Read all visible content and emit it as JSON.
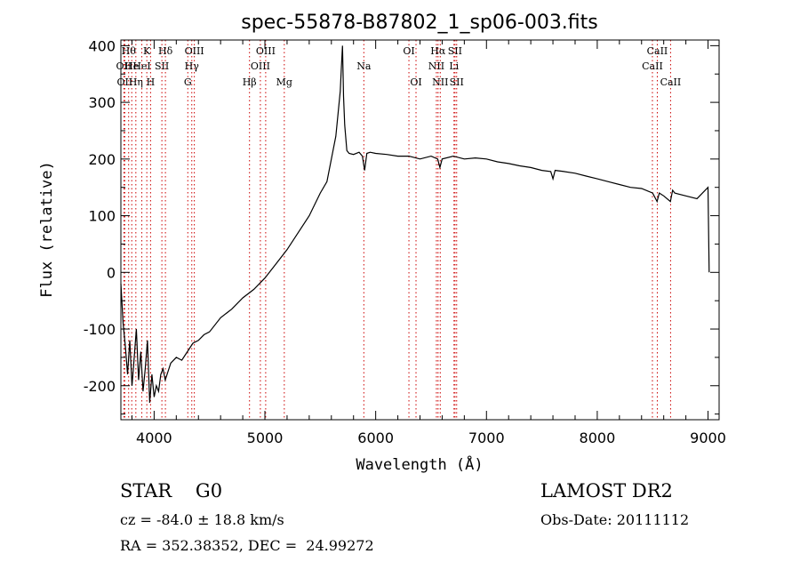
{
  "chart_data": {
    "type": "line",
    "title": "spec-55878-B87802_1_sp06-003.fits",
    "xlabel": "Wavelength (Å)",
    "ylabel": "Flux (relative)",
    "xlim": [
      3700,
      9100
    ],
    "ylim": [
      -260,
      410
    ],
    "xticks": [
      4000,
      5000,
      6000,
      7000,
      8000,
      9000
    ],
    "yticks": [
      -200,
      -100,
      0,
      100,
      200,
      300,
      400
    ],
    "grid": false,
    "legend": "none",
    "line_color": "#000000",
    "marker_color": "#cc0000",
    "series": [
      {
        "x": [
          3700,
          3720,
          3740,
          3760,
          3780,
          3800,
          3820,
          3840,
          3860,
          3880,
          3900,
          3920,
          3940,
          3960,
          3980,
          4000,
          4020,
          4040,
          4060,
          4080,
          4100,
          4150,
          4200,
          4250,
          4300,
          4350,
          4400,
          4450,
          4500,
          4600,
          4700,
          4800,
          4900,
          5000,
          5100,
          5200,
          5300,
          5400,
          5500,
          5560,
          5600,
          5640,
          5660,
          5680,
          5690,
          5700,
          5710,
          5720,
          5740,
          5760,
          5800,
          5850,
          5880,
          5900,
          5920,
          5950,
          6000,
          6100,
          6200,
          6300,
          6400,
          6500,
          6560,
          6580,
          6600,
          6700,
          6800,
          6900,
          7000,
          7100,
          7200,
          7300,
          7400,
          7500,
          7580,
          7600,
          7620,
          7700,
          7800,
          7900,
          8000,
          8100,
          8200,
          8300,
          8400,
          8500,
          8540,
          8560,
          8600,
          8660,
          8680,
          8700,
          8800,
          8900,
          8950,
          9000,
          9010
        ],
        "values": [
          -20,
          -90,
          -130,
          -180,
          -120,
          -200,
          -150,
          -100,
          -190,
          -140,
          -210,
          -170,
          -120,
          -230,
          -180,
          -220,
          -200,
          -210,
          -180,
          -170,
          -190,
          -160,
          -150,
          -155,
          -140,
          -125,
          -120,
          -110,
          -105,
          -80,
          -65,
          -45,
          -30,
          -10,
          15,
          40,
          70,
          100,
          140,
          160,
          200,
          240,
          280,
          320,
          360,
          400,
          310,
          260,
          215,
          210,
          208,
          212,
          205,
          180,
          210,
          212,
          210,
          208,
          205,
          205,
          200,
          205,
          200,
          185,
          200,
          205,
          200,
          202,
          200,
          195,
          192,
          188,
          185,
          180,
          178,
          165,
          180,
          178,
          175,
          170,
          165,
          160,
          155,
          150,
          148,
          140,
          125,
          140,
          135,
          125,
          145,
          140,
          135,
          130,
          140,
          150,
          0
        ]
      }
    ],
    "annotations": {
      "elements": [
        {
          "wl": 3727,
          "row": 1,
          "label": "OII"
        },
        {
          "wl": 3735,
          "row": 2,
          "label": "OII"
        },
        {
          "wl": 3770,
          "row": 0,
          "label": "Hθ"
        },
        {
          "wl": 3798,
          "row": 1,
          "label": "He"
        },
        {
          "wl": 3835,
          "row": 2,
          "label": "Hη"
        },
        {
          "wl": 3889,
          "row": 1,
          "label": "HeI"
        },
        {
          "wl": 3934,
          "row": 0,
          "label": "K"
        },
        {
          "wl": 3968,
          "row": 2,
          "label": "H"
        },
        {
          "wl": 4070,
          "row": 1,
          "label": "SII"
        },
        {
          "wl": 4102,
          "row": 0,
          "label": "Hδ"
        },
        {
          "wl": 4304,
          "row": 2,
          "label": "G"
        },
        {
          "wl": 4340,
          "row": 1,
          "label": "Hγ"
        },
        {
          "wl": 4363,
          "row": 0,
          "label": "OIII"
        },
        {
          "wl": 4861,
          "row": 2,
          "label": "Hβ"
        },
        {
          "wl": 4959,
          "row": 1,
          "label": "OIII"
        },
        {
          "wl": 5007,
          "row": 0,
          "label": "OIII"
        },
        {
          "wl": 5175,
          "row": 2,
          "label": "Mg"
        },
        {
          "wl": 5893,
          "row": 1,
          "label": "Na"
        },
        {
          "wl": 6300,
          "row": 0,
          "label": "OI"
        },
        {
          "wl": 6364,
          "row": 2,
          "label": "OI"
        },
        {
          "wl": 6548,
          "row": 1,
          "label": "NII"
        },
        {
          "wl": 6563,
          "row": 0,
          "label": "Hα"
        },
        {
          "wl": 6583,
          "row": 2,
          "label": "NII"
        },
        {
          "wl": 6707,
          "row": 1,
          "label": "Li"
        },
        {
          "wl": 6716,
          "row": 0,
          "label": "SII"
        },
        {
          "wl": 6731,
          "row": 2,
          "label": "SII"
        },
        {
          "wl": 8498,
          "row": 1,
          "label": "CaII"
        },
        {
          "wl": 8542,
          "row": 0,
          "label": "CaII"
        },
        {
          "wl": 8662,
          "row": 2,
          "label": "CaII"
        }
      ]
    }
  },
  "info": {
    "class": "STAR    G0",
    "cz": "cz = -84.0 ± 18.8 km/s",
    "radec": "RA = 352.38352, DEC =  24.99272",
    "survey": "LAMOST DR2",
    "obsdate": "Obs-Date: 20111112"
  }
}
